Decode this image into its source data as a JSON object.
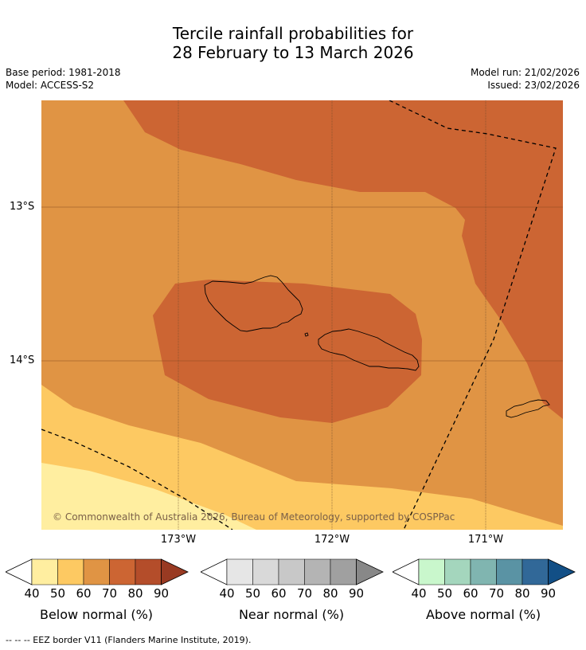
{
  "title_lines": [
    "Tercile rainfall probabilities for",
    "28 February to 13 March 2026"
  ],
  "meta": {
    "base_period": "Base period: 1981-2018",
    "model": "Model: ACCESS-S2",
    "model_run": "Model run: 21/02/2026",
    "issued": "Issued: 23/02/2026"
  },
  "map": {
    "lat_labels": [
      "13°S",
      "14°S"
    ],
    "lon_labels": [
      "173°W",
      "172°W",
      "171°W"
    ],
    "copyright": "© Commonwealth of Australia 2026, Bureau of Meteorology, supported by COSPPac"
  },
  "colorbars": [
    {
      "label": "Below normal (%)",
      "ticks": [
        "40",
        "50",
        "60",
        "70",
        "80",
        "90"
      ],
      "colors": [
        "#ffffff",
        "#ffeea0",
        "#fdc962",
        "#e09444",
        "#cc6533",
        "#b44d2a",
        "#993a22"
      ]
    },
    {
      "label": "Near normal (%)",
      "ticks": [
        "40",
        "50",
        "60",
        "70",
        "80",
        "90"
      ],
      "colors": [
        "#ffffff",
        "#e6e6e6",
        "#d9d9d9",
        "#c8c8c8",
        "#b4b4b4",
        "#a0a0a0",
        "#888888"
      ]
    },
    {
      "label": "Above normal (%)",
      "ticks": [
        "40",
        "50",
        "60",
        "70",
        "80",
        "90"
      ],
      "colors": [
        "#ffffff",
        "#c9f7cc",
        "#a4d6bd",
        "#80b5b0",
        "#5a93a4",
        "#316898",
        "#124f86"
      ]
    }
  ],
  "footer": "--  --  -- EEZ border V11 (Flanders Marine Institute, 2019)."
}
